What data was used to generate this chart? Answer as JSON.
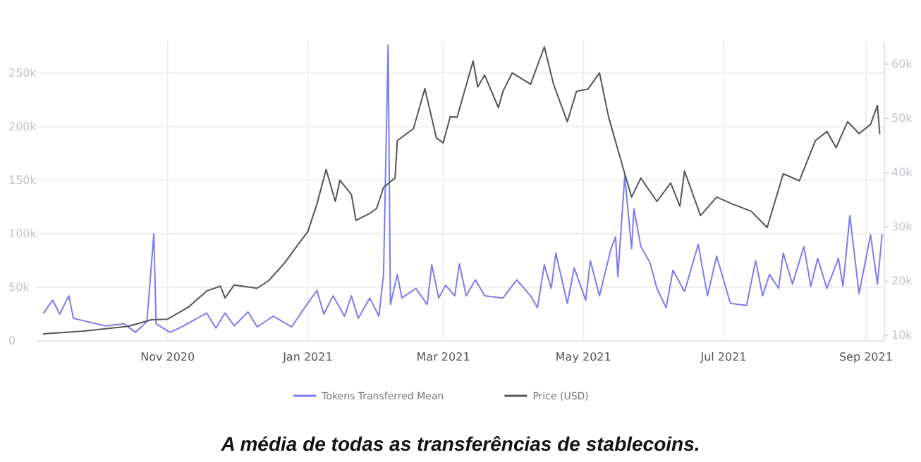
{
  "chart_data": {
    "type": "line",
    "annotations": [
      "A média de todas as transferências de stablecoins."
    ],
    "xlim": [
      "2020-09-05",
      "2021-09-09"
    ],
    "xticks": [
      {
        "value": "2020-11-01",
        "label": "Nov 2020"
      },
      {
        "value": "2021-01-01",
        "label": "Jan 2021"
      },
      {
        "value": "2021-03-01",
        "label": "Mar 2021"
      },
      {
        "value": "2021-05-01",
        "label": "May 2021"
      },
      {
        "value": "2021-07-01",
        "label": "Jul 2021"
      },
      {
        "value": "2021-09-01",
        "label": "Sep 2021"
      }
    ],
    "ylim": [
      0,
      280000
    ],
    "yticks": [
      {
        "value": 0,
        "label": "0"
      },
      {
        "value": 50000,
        "label": "50k"
      },
      {
        "value": 100000,
        "label": "100k"
      },
      {
        "value": 150000,
        "label": "150k"
      },
      {
        "value": 200000,
        "label": "200k"
      },
      {
        "value": 250000,
        "label": "250k"
      }
    ],
    "y2lim": [
      9000,
      64300
    ],
    "y2ticks": [
      {
        "value": 10000,
        "label": "10k"
      },
      {
        "value": 20000,
        "label": "20k"
      },
      {
        "value": 30000,
        "label": "30k"
      },
      {
        "value": 40000,
        "label": "40k"
      },
      {
        "value": 50000,
        "label": "50k"
      },
      {
        "value": 60000,
        "label": "60k"
      }
    ],
    "grid": true,
    "legend": "bottom",
    "marker": "none",
    "line_style": "solid",
    "series": [
      {
        "name": "Tokens Transferred Mean",
        "color": "#7b7bf0",
        "x": [
          "2020-09-08",
          "2020-09-12",
          "2020-09-15",
          "2020-09-19",
          "2020-09-21",
          "2020-09-27",
          "2020-10-05",
          "2020-10-13",
          "2020-10-18",
          "2020-10-23",
          "2020-10-26",
          "2020-10-27",
          "2020-11-02",
          "2020-11-08",
          "2020-11-18",
          "2020-11-22",
          "2020-11-26",
          "2020-11-30",
          "2020-12-06",
          "2020-12-10",
          "2020-12-17",
          "2020-12-25",
          "2020-12-30",
          "2021-01-05",
          "2021-01-08",
          "2021-01-12",
          "2021-01-17",
          "2021-01-20",
          "2021-01-23",
          "2021-01-28",
          "2021-02-01",
          "2021-02-03",
          "2021-02-05",
          "2021-02-06",
          "2021-02-09",
          "2021-02-11",
          "2021-02-17",
          "2021-02-22",
          "2021-02-24",
          "2021-02-27",
          "2021-03-02",
          "2021-03-06",
          "2021-03-08",
          "2021-03-11",
          "2021-03-15",
          "2021-03-19",
          "2021-03-27",
          "2021-04-02",
          "2021-04-08",
          "2021-04-11",
          "2021-04-14",
          "2021-04-17",
          "2021-04-19",
          "2021-04-24",
          "2021-04-27",
          "2021-05-02",
          "2021-05-04",
          "2021-05-08",
          "2021-05-13",
          "2021-05-15",
          "2021-05-16",
          "2021-05-19",
          "2021-05-22",
          "2021-05-23",
          "2021-05-26",
          "2021-05-30",
          "2021-06-02",
          "2021-06-06",
          "2021-06-09",
          "2021-06-14",
          "2021-06-20",
          "2021-06-24",
          "2021-06-28",
          "2021-07-04",
          "2021-07-11",
          "2021-07-15",
          "2021-07-18",
          "2021-07-21",
          "2021-07-25",
          "2021-07-27",
          "2021-07-31",
          "2021-08-05",
          "2021-08-08",
          "2021-08-11",
          "2021-08-15",
          "2021-08-20",
          "2021-08-22",
          "2021-08-25",
          "2021-08-29",
          "2021-09-03",
          "2021-09-06",
          "2021-09-08"
        ],
        "values": [
          26000,
          38000,
          25000,
          42000,
          21000,
          18000,
          14000,
          16000,
          8000,
          18000,
          100000,
          16000,
          8000,
          14000,
          26000,
          12000,
          26000,
          14000,
          27000,
          13000,
          23000,
          13000,
          29000,
          47000,
          25000,
          42000,
          23000,
          42000,
          21000,
          40000,
          23000,
          62000,
          276000,
          34000,
          62000,
          40000,
          49000,
          34000,
          71000,
          40000,
          52000,
          42000,
          72000,
          42000,
          57000,
          42000,
          40000,
          57000,
          42000,
          31000,
          71000,
          49000,
          82000,
          35000,
          68000,
          38000,
          75000,
          42000,
          86000,
          97000,
          60000,
          154000,
          86000,
          123000,
          88000,
          73000,
          49000,
          31000,
          66000,
          46000,
          90000,
          42000,
          79000,
          35000,
          33000,
          75000,
          42000,
          62000,
          49000,
          82000,
          53000,
          88000,
          51000,
          77000,
          49000,
          77000,
          51000,
          117000,
          44000,
          99000,
          53000,
          99000
        ]
      },
      {
        "name": "Price (USD)",
        "color": "#555555",
        "axis": "y2",
        "x": [
          "2020-09-08",
          "2020-09-25",
          "2020-10-15",
          "2020-10-25",
          "2020-11-01",
          "2020-11-10",
          "2020-11-18",
          "2020-11-24",
          "2020-11-26",
          "2020-11-30",
          "2020-12-10",
          "2020-12-15",
          "2020-12-22",
          "2020-12-28",
          "2021-01-01",
          "2021-01-05",
          "2021-01-09",
          "2021-01-13",
          "2021-01-15",
          "2021-01-20",
          "2021-01-22",
          "2021-01-28",
          "2021-01-31",
          "2021-02-03",
          "2021-02-08",
          "2021-02-09",
          "2021-02-16",
          "2021-02-21",
          "2021-02-26",
          "2021-03-01",
          "2021-03-04",
          "2021-03-07",
          "2021-03-14",
          "2021-03-16",
          "2021-03-19",
          "2021-03-25",
          "2021-03-27",
          "2021-03-31",
          "2021-04-08",
          "2021-04-14",
          "2021-04-18",
          "2021-04-24",
          "2021-04-28",
          "2021-05-03",
          "2021-05-08",
          "2021-05-12",
          "2021-05-19",
          "2021-05-22",
          "2021-05-26",
          "2021-06-02",
          "2021-06-08",
          "2021-06-12",
          "2021-06-14",
          "2021-06-21",
          "2021-06-28",
          "2021-07-05",
          "2021-07-13",
          "2021-07-20",
          "2021-07-27",
          "2021-08-03",
          "2021-08-10",
          "2021-08-15",
          "2021-08-19",
          "2021-08-24",
          "2021-08-29",
          "2021-09-03",
          "2021-09-06",
          "2021-09-07"
        ],
        "values": [
          10300,
          10800,
          11700,
          12900,
          13000,
          15200,
          18200,
          19100,
          16900,
          19300,
          18700,
          20100,
          23400,
          26900,
          29100,
          34200,
          40600,
          34700,
          38600,
          36000,
          31200,
          32500,
          33400,
          37300,
          39000,
          45900,
          48100,
          55500,
          46400,
          45500,
          50300,
          50200,
          60600,
          55800,
          58000,
          52000,
          55000,
          58400,
          56300,
          63200,
          56300,
          49400,
          55000,
          55400,
          58400,
          50200,
          39800,
          35500,
          39000,
          34700,
          38100,
          33800,
          40300,
          32100,
          35500,
          34200,
          32900,
          29900,
          39800,
          38500,
          45900,
          47600,
          44600,
          49400,
          47200,
          48900,
          52400,
          47200
        ]
      }
    ]
  }
}
